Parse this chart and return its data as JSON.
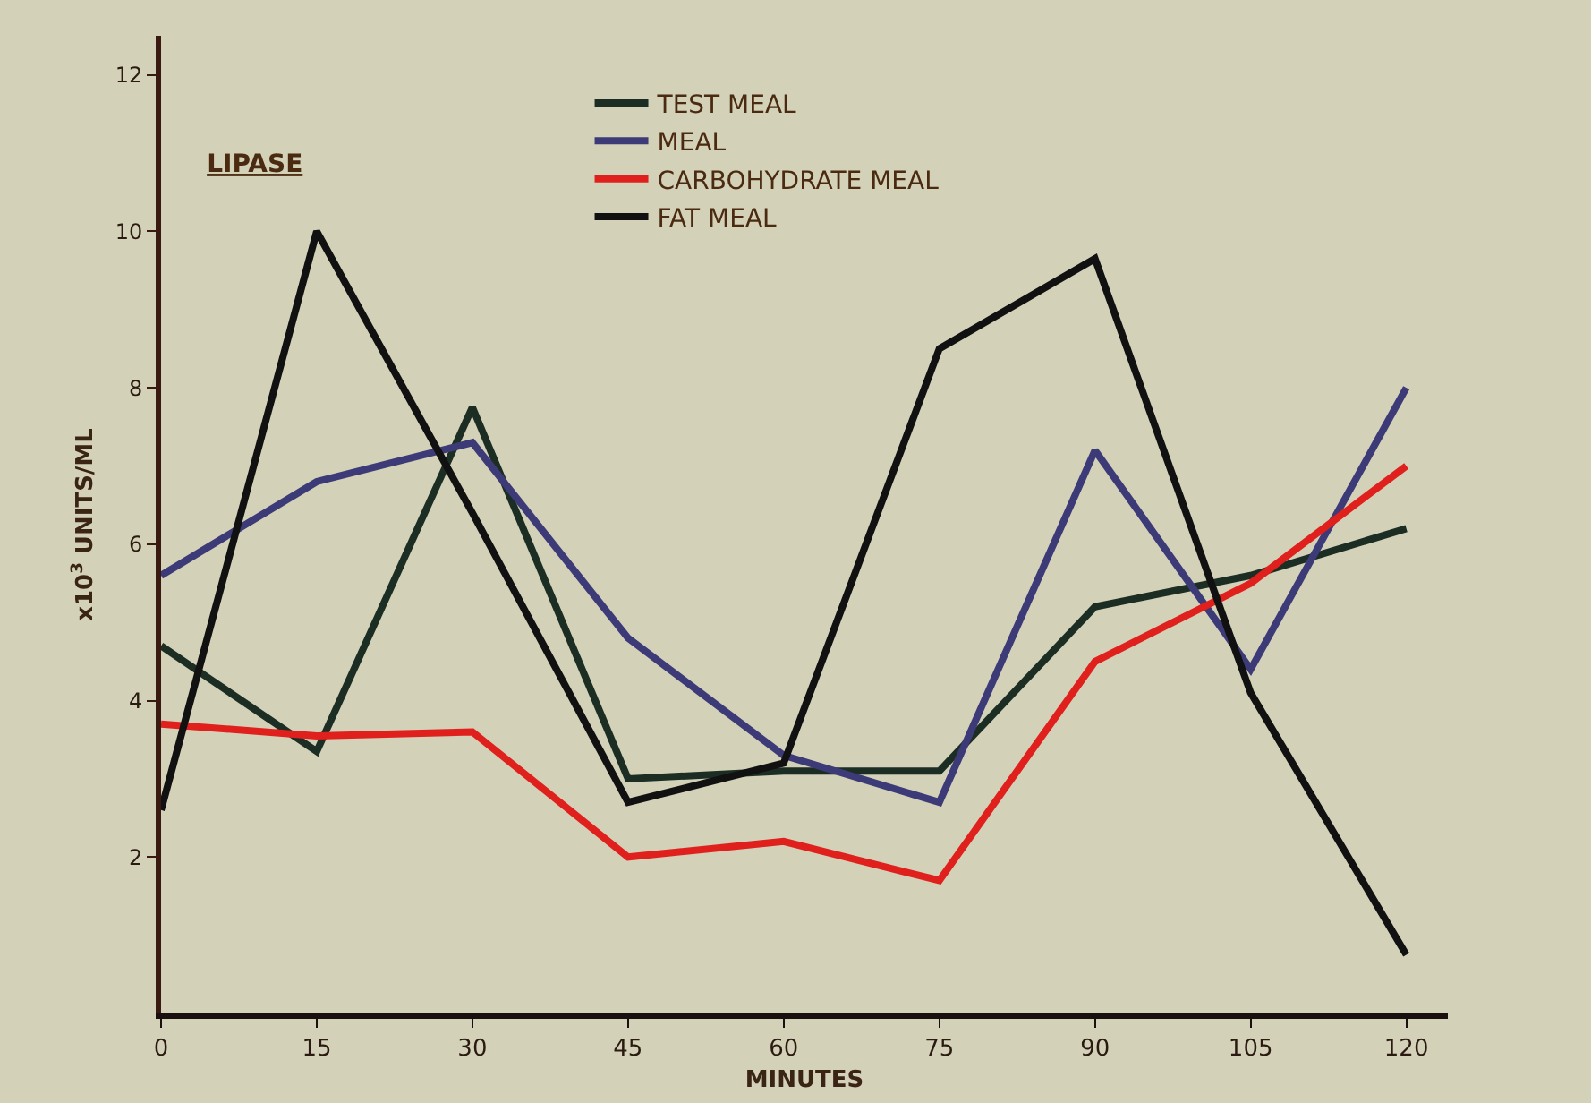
{
  "chart_data": {
    "type": "line",
    "title": "LIPASE",
    "xlabel": "MINUTES",
    "ylabel": "x10$^{3}$ UNITS/ML",
    "x": [
      0,
      15,
      30,
      45,
      60,
      75,
      90,
      105,
      120
    ],
    "series": [
      {
        "name": "TEST MEAL",
        "color": "#1c2e24",
        "values": [
          4.7,
          3.35,
          7.75,
          3.0,
          3.1,
          3.1,
          5.2,
          5.6,
          6.2
        ]
      },
      {
        "name": "MEAL",
        "color": "#3d3a78",
        "values": [
          5.6,
          6.8,
          7.3,
          4.8,
          3.3,
          2.7,
          7.2,
          4.4,
          8.0
        ]
      },
      {
        "name": "CARBOHYDRATE MEAL",
        "color": "#e0201c",
        "values": [
          3.7,
          3.55,
          3.6,
          2.0,
          2.2,
          1.7,
          4.5,
          5.5,
          7.0
        ]
      },
      {
        "name": "FAT MEAL",
        "color": "#111111",
        "values": [
          2.6,
          10.0,
          6.4,
          2.7,
          3.2,
          8.5,
          9.65,
          4.1,
          0.75
        ]
      }
    ],
    "xlim": [
      0,
      124
    ],
    "xticks": [
      0,
      15,
      30,
      45,
      60,
      75,
      90,
      105,
      120
    ],
    "ylim": [
      0,
      12.5
    ],
    "yticks": [
      2,
      4,
      6,
      8,
      10,
      12
    ],
    "grid": false,
    "legend": "top",
    "line_style": "solid"
  }
}
